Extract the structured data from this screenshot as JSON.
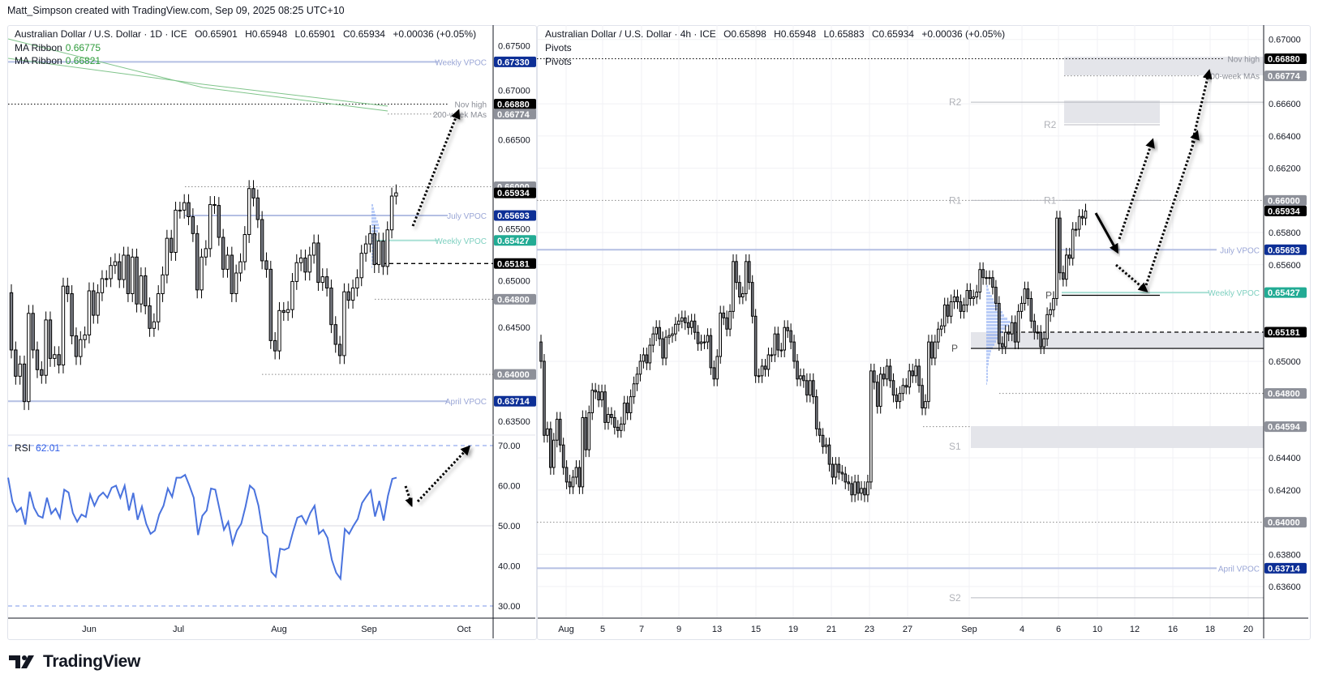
{
  "header": {
    "attribution": "Matt_Simpson created with TradingView.com, Sep 09, 2025 08:25 UTC+10"
  },
  "left_chart": {
    "legend": {
      "symbol": "Australian Dollar / U.S. Dollar · 1D · ICE",
      "open": "O0.65901",
      "high": "H0.65948",
      "low": "L0.65901",
      "close": "C0.65934",
      "change": "+0.00036 (+0.05%)"
    },
    "indicators": [
      {
        "label": "MA Ribbon",
        "value": "0.66775"
      },
      {
        "label": "MA Ribbon",
        "value": "0.66821"
      }
    ],
    "rsi": {
      "label": "RSI",
      "value": "62.01"
    }
  },
  "right_chart": {
    "legend": {
      "symbol": "Australian Dollar / U.S. Dollar · 4h · ICE",
      "open": "O0.65898",
      "high": "H0.65948",
      "low": "L0.65883",
      "close": "C0.65934",
      "change": "+0.00036 (+0.05%)"
    },
    "indicators": [
      {
        "label": "Pivots"
      },
      {
        "label": "Pivots"
      }
    ]
  },
  "logo": {
    "text": "TradingView"
  },
  "colors": {
    "bull": "#ffffff",
    "bear": "#7b7e86",
    "outline": "#000000",
    "ribbon": "#7fc48a",
    "vpoc_line": "#b4bfe3",
    "vpoc_tag": "#0d2f96",
    "weekly_vpoc_tag": "#22ab94",
    "weekly_vpoc_line": "#a9e0d5",
    "black_tag": "#000000",
    "gray_tag": "#8d9099",
    "rsi_line": "#4a73de",
    "zone": "#e4e5ea"
  },
  "chart_data": [
    {
      "id": "daily",
      "type": "candlestick",
      "timeframe": "1D",
      "x_ticks": [
        "Jun",
        "Jul",
        "Aug",
        "Sep",
        "Oct"
      ],
      "y_ticks": [
        "0.67500",
        "0.67000",
        "0.66500",
        "0.65500",
        "0.65000",
        "0.64500",
        "0.63500"
      ],
      "ylim": [
        0.6335,
        0.6772
      ],
      "first_open": 0.6487,
      "close": [
        0.6426,
        0.6398,
        0.6411,
        0.6371,
        0.6465,
        0.6426,
        0.6405,
        0.6399,
        0.6458,
        0.6417,
        0.6421,
        0.641,
        0.6494,
        0.6486,
        0.6441,
        0.6419,
        0.6437,
        0.6442,
        0.6489,
        0.6463,
        0.6487,
        0.6502,
        0.6502,
        0.6516,
        0.652,
        0.6501,
        0.6527,
        0.6486,
        0.6525,
        0.6475,
        0.6505,
        0.6473,
        0.6449,
        0.6456,
        0.6486,
        0.6506,
        0.6545,
        0.653,
        0.6575,
        0.6575,
        0.6583,
        0.6568,
        0.655,
        0.649,
        0.6525,
        0.6534,
        0.6581,
        0.658,
        0.6546,
        0.6512,
        0.6527,
        0.6486,
        0.6508,
        0.652,
        0.6549,
        0.6598,
        0.6588,
        0.6565,
        0.6521,
        0.6512,
        0.6436,
        0.6425,
        0.6468,
        0.6466,
        0.6469,
        0.6499,
        0.6519,
        0.6524,
        0.6509,
        0.6527,
        0.654,
        0.6498,
        0.6504,
        0.6492,
        0.6453,
        0.6432,
        0.642,
        0.6488,
        0.6479,
        0.6492,
        0.6503,
        0.6529,
        0.6539,
        0.655,
        0.6517,
        0.6542,
        0.6515,
        0.6554,
        0.659,
        0.65934
      ],
      "ma_ribbon": [
        0.66775,
        0.66821
      ],
      "levels": [
        {
          "price": "0.67330",
          "label": "Weekly VPOC",
          "tag": "navy"
        },
        {
          "price": "0.66880",
          "label": "Nov high",
          "tag": "black"
        },
        {
          "price": "0.66774",
          "label": "200-week MAs",
          "tag": "gray"
        },
        {
          "price": "0.66000",
          "label": "",
          "tag": "gray"
        },
        {
          "price": "0.65934",
          "label": "",
          "tag": "black"
        },
        {
          "price": "0.65693",
          "label": "July VPOC",
          "tag": "navy"
        },
        {
          "price": "0.65427",
          "label": "Weekly VPOC",
          "tag": "teal"
        },
        {
          "price": "0.65181",
          "label": "",
          "tag": "black"
        },
        {
          "price": "0.64800",
          "label": "",
          "tag": "gray"
        },
        {
          "price": "0.64000",
          "label": "",
          "tag": "gray"
        },
        {
          "price": "0.63714",
          "label": "April VPOC",
          "tag": "navy"
        }
      ]
    },
    {
      "id": "rsi",
      "type": "line",
      "name": "RSI",
      "y_ticks": [
        "70.00",
        "60.00",
        "50.00",
        "40.00",
        "30.00"
      ],
      "ylim": [
        28,
        72
      ],
      "bands": [
        70,
        50,
        30
      ],
      "values": [
        62,
        56,
        53.5,
        54.5,
        50.3,
        58.5,
        54.5,
        52.5,
        52,
        57,
        53,
        54.3,
        52,
        59,
        58.3,
        53.2,
        51,
        52.8,
        52.2,
        57.8,
        55,
        57.3,
        58.3,
        57,
        59.5,
        60,
        57,
        60,
        53.8,
        58.2,
        51.5,
        54.8,
        50.5,
        48,
        48.8,
        52.8,
        55,
        59.3,
        57.2,
        62,
        62,
        62.7,
        60,
        57,
        47.7,
        52.5,
        53.8,
        59.3,
        59,
        54,
        49,
        51,
        45.5,
        48.8,
        50.5,
        54.8,
        60,
        59,
        55,
        48.3,
        47.3,
        38.5,
        37.3,
        44.3,
        44,
        44.5,
        48.5,
        52,
        52.5,
        50.5,
        53.2,
        55,
        48,
        49,
        47,
        41.5,
        38.3,
        36.8,
        49.2,
        48,
        50,
        51.7,
        55.7,
        57.3,
        58.8,
        52.3,
        56.2,
        51.3,
        57.5,
        61.7,
        62.01
      ]
    },
    {
      "id": "h4",
      "type": "candlestick",
      "timeframe": "4h",
      "x_ticks": [
        "Aug",
        "5",
        "7",
        "9",
        "13",
        "15",
        "19",
        "21",
        "23",
        "27",
        "Sep",
        "4",
        "6",
        "10",
        "12",
        "16",
        "18",
        "20"
      ],
      "y_ticks": [
        "0.67000",
        "0.66600",
        "0.66400",
        "0.66200",
        "0.65800",
        "0.65600",
        "0.65000",
        "0.64400",
        "0.64200",
        "0.63800",
        "0.63600"
      ],
      "ylim": [
        0.6349,
        0.6708
      ],
      "first_open": 0.6512,
      "close": [
        0.65,
        0.6454,
        0.6458,
        0.6434,
        0.6451,
        0.6464,
        0.6448,
        0.6434,
        0.6425,
        0.6422,
        0.6428,
        0.6434,
        0.6422,
        0.6465,
        0.6445,
        0.6468,
        0.6482,
        0.6481,
        0.6476,
        0.6481,
        0.6462,
        0.6467,
        0.6465,
        0.6459,
        0.6457,
        0.6461,
        0.6474,
        0.6468,
        0.6478,
        0.6486,
        0.6492,
        0.65,
        0.6504,
        0.6499,
        0.651,
        0.6517,
        0.6521,
        0.6514,
        0.6502,
        0.6515,
        0.6516,
        0.6517,
        0.6523,
        0.6525,
        0.6527,
        0.6524,
        0.6521,
        0.6525,
        0.6518,
        0.6511,
        0.6512,
        0.6512,
        0.6516,
        0.6496,
        0.6489,
        0.6503,
        0.653,
        0.6527,
        0.652,
        0.6531,
        0.6562,
        0.6549,
        0.654,
        0.6542,
        0.6562,
        0.6549,
        0.6528,
        0.6491,
        0.6491,
        0.6497,
        0.6495,
        0.6504,
        0.6504,
        0.6517,
        0.6507,
        0.6507,
        0.6521,
        0.6519,
        0.6512,
        0.65,
        0.6489,
        0.6491,
        0.6488,
        0.6479,
        0.6488,
        0.6478,
        0.6458,
        0.6454,
        0.6447,
        0.6448,
        0.6436,
        0.6428,
        0.6436,
        0.6431,
        0.643,
        0.6425,
        0.6424,
        0.6417,
        0.6425,
        0.6418,
        0.6421,
        0.6417,
        0.6425,
        0.6494,
        0.6487,
        0.6472,
        0.6492,
        0.6489,
        0.6497,
        0.6488,
        0.6479,
        0.6475,
        0.648,
        0.6485,
        0.6484,
        0.6494,
        0.6491,
        0.6497,
        0.6485,
        0.6471,
        0.6475,
        0.6512,
        0.6502,
        0.6512,
        0.652,
        0.6522,
        0.6535,
        0.6528,
        0.6537,
        0.654,
        0.6537,
        0.6531,
        0.6535,
        0.6544,
        0.6539,
        0.654,
        0.6543,
        0.6557,
        0.6552,
        0.6552,
        0.6552,
        0.6546,
        0.6536,
        0.6511,
        0.6509,
        0.6518,
        0.6517,
        0.6524,
        0.6512,
        0.6531,
        0.6536,
        0.6545,
        0.6539,
        0.6525,
        0.6518,
        0.6518,
        0.6509,
        0.6514,
        0.6529,
        0.6532,
        0.6539,
        0.6589,
        0.6555,
        0.6551,
        0.6566,
        0.6564,
        0.6582,
        0.6582,
        0.659,
        0.6589,
        0.65934
      ],
      "levels": [
        {
          "price": "0.66880",
          "label": "Nov high",
          "tag": "black"
        },
        {
          "price": "0.66774",
          "label": "200-week MAs",
          "tag": "gray"
        },
        {
          "price": "0.66000",
          "label": "",
          "tag": "gray"
        },
        {
          "price": "0.65934",
          "label": "",
          "tag": "black"
        },
        {
          "price": "0.65693",
          "label": "July VPOC",
          "tag": "navy"
        },
        {
          "price": "0.65427",
          "label": "Weekly VPOC",
          "tag": "teal"
        },
        {
          "price": "0.65181",
          "label": "",
          "tag": "black"
        },
        {
          "price": "0.64800",
          "label": "",
          "tag": "gray"
        },
        {
          "price": "0.64594",
          "label": "",
          "tag": "gray"
        },
        {
          "price": "0.64000",
          "label": "",
          "tag": "gray"
        },
        {
          "price": "0.63714",
          "label": "April VPOC",
          "tag": "navy"
        }
      ],
      "pivots": [
        {
          "label": "R2",
          "price": 0.6661
        },
        {
          "label": "R2",
          "price": 0.6647
        },
        {
          "label": "R1",
          "price": 0.66
        },
        {
          "label": "R1",
          "price": 0.66
        },
        {
          "label": "P",
          "price": 0.6541
        },
        {
          "label": "P",
          "price": 0.6508
        },
        {
          "label": "S1",
          "price": 0.6447
        },
        {
          "label": "S2",
          "price": 0.6353
        }
      ]
    }
  ]
}
